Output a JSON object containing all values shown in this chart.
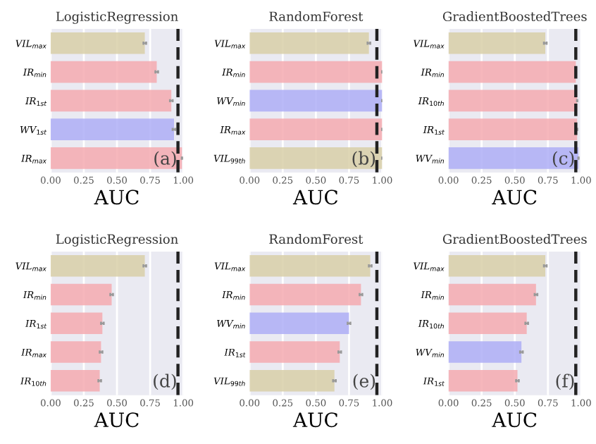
{
  "chart_data": [
    {
      "type": "bar",
      "orientation": "horizontal",
      "title": "LogisticRegression",
      "xlabel": "AUC",
      "categories": [
        "VIL$_{max}$",
        "IR$_{min}$",
        "IR$_{1st}$",
        "WV$_{1st}$",
        "IR$_{max}$"
      ],
      "values": [
        0.71,
        0.8,
        0.91,
        0.93,
        0.99
      ],
      "errors": [
        0.01,
        0.01,
        0.01,
        0.01,
        null
      ],
      "colors": [
        "#d8cfa8",
        "#f4aab0",
        "#f4aab0",
        "#aeaef6",
        "#f4aab0"
      ],
      "xlim": [
        0,
        1.0
      ],
      "xticks": [
        {
          "value": 0,
          "label": "0.00"
        },
        {
          "value": 0.25,
          "label": "0.25"
        },
        {
          "value": 0.5,
          "label": "0.50"
        },
        {
          "value": 0.75,
          "label": "0.75"
        },
        {
          "value": 1.0,
          "label": "1.00"
        }
      ],
      "grid": true,
      "ref_lines": [
        {
          "axis": "x",
          "value": 0.96,
          "color": "#222222",
          "line_style": "dashed"
        }
      ],
      "annotations": [
        "(a)"
      ]
    },
    {
      "type": "bar",
      "orientation": "horizontal",
      "title": "RandomForest",
      "xlabel": "AUC",
      "categories": [
        "VIL$_{max}$",
        "IR$_{min}$",
        "WV$_{min}$",
        "IR$_{max}$",
        "VIL$_{99th}$"
      ],
      "values": [
        0.9,
        1.0,
        1.0,
        1.0,
        1.0
      ],
      "errors": [
        0.01,
        null,
        null,
        null,
        null
      ],
      "colors": [
        "#d8cfa8",
        "#f4aab0",
        "#aeaef6",
        "#f4aab0",
        "#d8cfa8"
      ],
      "xlim": [
        0,
        1.0
      ],
      "xticks": [
        {
          "value": 0,
          "label": "0.00"
        },
        {
          "value": 0.25,
          "label": "0.25"
        },
        {
          "value": 0.5,
          "label": "0.50"
        },
        {
          "value": 0.75,
          "label": "0.75"
        },
        {
          "value": 1.0,
          "label": "1.00"
        }
      ],
      "grid": true,
      "ref_lines": [
        {
          "axis": "x",
          "value": 0.96,
          "color": "#222222",
          "line_style": "dashed"
        }
      ],
      "annotations": [
        "(b)"
      ]
    },
    {
      "type": "bar",
      "orientation": "horizontal",
      "title": "GradientBoostedTrees",
      "xlabel": "AUC",
      "categories": [
        "VIL$_{max}$",
        "IR$_{min}$",
        "IR$_{10th}$",
        "IR$_{1st}$",
        "WV$_{min}$"
      ],
      "values": [
        0.73,
        0.96,
        0.97,
        0.97,
        0.98
      ],
      "errors": [
        0.01,
        null,
        null,
        null,
        null
      ],
      "colors": [
        "#d8cfa8",
        "#f4aab0",
        "#f4aab0",
        "#f4aab0",
        "#aeaef6"
      ],
      "xlim": [
        0,
        1.0
      ],
      "xticks": [
        {
          "value": 0,
          "label": "0.00"
        },
        {
          "value": 0.25,
          "label": "0.25"
        },
        {
          "value": 0.5,
          "label": "0.50"
        },
        {
          "value": 0.75,
          "label": "0.75"
        },
        {
          "value": 1.0,
          "label": "1.00"
        }
      ],
      "grid": true,
      "ref_lines": [
        {
          "axis": "x",
          "value": 0.96,
          "color": "#222222",
          "line_style": "dashed"
        }
      ],
      "annotations": [
        "(c)"
      ]
    },
    {
      "type": "bar",
      "orientation": "horizontal",
      "title": "LogisticRegression",
      "xlabel": "AUC",
      "categories": [
        "VIL$_{max}$",
        "IR$_{min}$",
        "IR$_{1st}$",
        "IR$_{max}$",
        "IR$_{10th}$"
      ],
      "values": [
        0.71,
        0.46,
        0.39,
        0.38,
        0.37
      ],
      "errors": [
        0.01,
        0.01,
        0.01,
        0.01,
        0.01
      ],
      "colors": [
        "#d8cfa8",
        "#f4aab0",
        "#f4aab0",
        "#f4aab0",
        "#f4aab0"
      ],
      "xlim": [
        0,
        1.0
      ],
      "xticks": [
        {
          "value": 0,
          "label": "0.00"
        },
        {
          "value": 0.25,
          "label": "0.25"
        },
        {
          "value": 0.5,
          "label": "0.50"
        },
        {
          "value": 0.75,
          "label": "0.75"
        },
        {
          "value": 1.0,
          "label": "1.00"
        }
      ],
      "grid": true,
      "ref_lines": [
        {
          "axis": "x",
          "value": 0.96,
          "color": "#222222",
          "line_style": "dashed"
        }
      ],
      "annotations": [
        "(d)"
      ]
    },
    {
      "type": "bar",
      "orientation": "horizontal",
      "title": "RandomForest",
      "xlabel": "AUC",
      "categories": [
        "VIL$_{max}$",
        "IR$_{min}$",
        "WV$_{min}$",
        "IR$_{1st}$",
        "VIL$_{99th}$"
      ],
      "values": [
        0.91,
        0.84,
        0.75,
        0.68,
        0.64
      ],
      "errors": [
        0.01,
        0.01,
        0.01,
        0.01,
        0.01
      ],
      "colors": [
        "#d8cfa8",
        "#f4aab0",
        "#aeaef6",
        "#f4aab0",
        "#d8cfa8"
      ],
      "xlim": [
        0,
        1.0
      ],
      "xticks": [
        {
          "value": 0,
          "label": "0.00"
        },
        {
          "value": 0.25,
          "label": "0.25"
        },
        {
          "value": 0.5,
          "label": "0.50"
        },
        {
          "value": 0.75,
          "label": "0.75"
        },
        {
          "value": 1.0,
          "label": "1.00"
        }
      ],
      "grid": true,
      "ref_lines": [
        {
          "axis": "x",
          "value": 0.96,
          "color": "#222222",
          "line_style": "dashed"
        }
      ],
      "annotations": [
        "(e)"
      ]
    },
    {
      "type": "bar",
      "orientation": "horizontal",
      "title": "GradientBoostedTrees",
      "xlabel": "AUC",
      "categories": [
        "VIL$_{max}$",
        "IR$_{min}$",
        "IR$_{10th}$",
        "WV$_{min}$",
        "IR$_{1st}$"
      ],
      "values": [
        0.73,
        0.66,
        0.59,
        0.55,
        0.52
      ],
      "errors": [
        0.01,
        0.01,
        0.01,
        0.01,
        0.01
      ],
      "colors": [
        "#d8cfa8",
        "#f4aab0",
        "#f4aab0",
        "#aeaef6",
        "#f4aab0"
      ],
      "xlim": [
        0,
        1.0
      ],
      "xticks": [
        {
          "value": 0,
          "label": "0.00"
        },
        {
          "value": 0.25,
          "label": "0.25"
        },
        {
          "value": 0.5,
          "label": "0.50"
        },
        {
          "value": 0.75,
          "label": "0.75"
        },
        {
          "value": 1.0,
          "label": "1.00"
        }
      ],
      "grid": true,
      "ref_lines": [
        {
          "axis": "x",
          "value": 0.96,
          "color": "#222222",
          "line_style": "dashed"
        }
      ],
      "annotations": [
        "(f)"
      ]
    }
  ]
}
